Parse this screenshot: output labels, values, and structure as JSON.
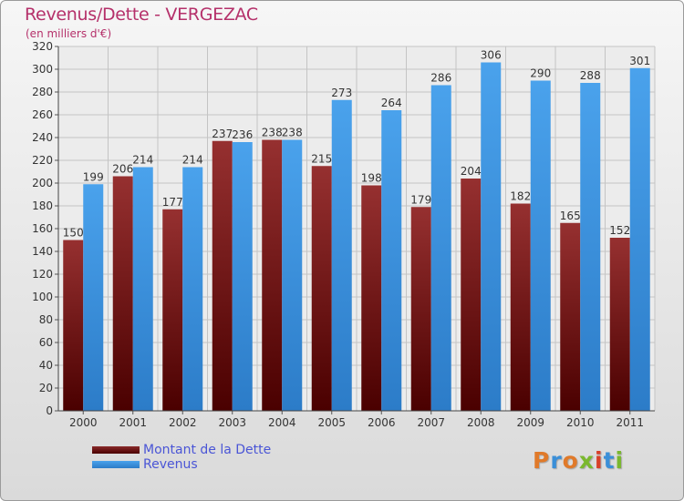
{
  "title": "Revenus/Dette - VERGEZAC",
  "subtitle": "(en milliers d'€)",
  "logo": "Proxiti",
  "colors": {
    "dette": "#7a1a1a",
    "revenus": "#3d93e0",
    "title": "#b5306a",
    "legend_text": "#4a55d6"
  },
  "chart_data": {
    "type": "bar",
    "title": "Revenus/Dette - VERGEZAC",
    "categories": [
      "2000",
      "2001",
      "2002",
      "2003",
      "2004",
      "2005",
      "2006",
      "2007",
      "2008",
      "2009",
      "2010",
      "2011"
    ],
    "series": [
      {
        "name": "Montant de la Dette",
        "values": [
          150,
          206,
          177,
          237,
          238,
          215,
          198,
          179,
          204,
          182,
          165,
          152
        ]
      },
      {
        "name": "Revenus",
        "values": [
          199,
          214,
          214,
          236,
          238,
          273,
          264,
          286,
          306,
          290,
          288,
          301
        ]
      }
    ],
    "ylim": [
      0,
      320
    ],
    "yticks": [
      0,
      20,
      40,
      60,
      80,
      100,
      120,
      140,
      160,
      180,
      200,
      220,
      240,
      260,
      280,
      300,
      320
    ],
    "grid": true,
    "legend_position": "bottom-left"
  }
}
